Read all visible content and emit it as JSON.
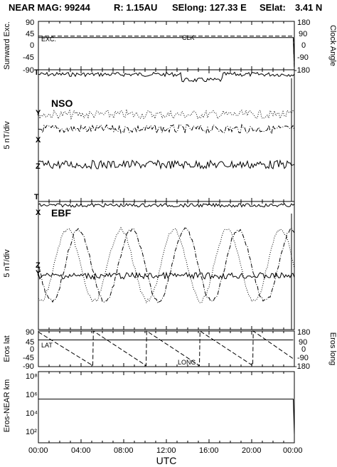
{
  "header": {
    "title_parts": [
      "NEAR MAG: 99244",
      "R: 1.15AU",
      "SElong:  127.33 E",
      "SElat:",
      "3.41 N"
    ]
  },
  "chart_data": [
    {
      "type": "line",
      "ylabel_left": "Sunward Exc.",
      "ylabel_right": "Clock Angle",
      "ylim_left": [
        -90,
        90
      ],
      "ylim_right": [
        -180,
        180
      ],
      "yticks_left": [
        "90",
        "45",
        "0",
        "-45",
        "-90"
      ],
      "yticks_right": [
        "180",
        "90",
        "0",
        "-90",
        "-180"
      ],
      "annotations": [
        "EXC.",
        "CLK"
      ],
      "series": [
        {
          "name": "EXC.",
          "style": "solid",
          "x": [
            0,
            23.9,
            24.0
          ],
          "y": [
            30,
            30,
            -88
          ]
        },
        {
          "name": "CLK",
          "style": "dashed",
          "x": [
            0,
            23.9,
            24.0
          ],
          "y": [
            35,
            35,
            -90
          ]
        }
      ]
    },
    {
      "type": "line",
      "label": "NSO",
      "ylabel": "5 nT/div",
      "annotations": [
        "T",
        "Y",
        "X",
        "Z",
        "T"
      ],
      "series": [
        {
          "name": "T",
          "style": "solid",
          "level": 0.035
        },
        {
          "name": "Y",
          "style": "dotted",
          "level": 0.34
        },
        {
          "name": "X",
          "style": "dashdot",
          "level": 0.45
        },
        {
          "name": "Z",
          "style": "solid",
          "level": 0.72
        }
      ]
    },
    {
      "type": "line",
      "label": "EBF",
      "ylabel": "5 nT/div",
      "annotations": [
        "X",
        "Z",
        "Y"
      ],
      "series": [
        {
          "name": "X",
          "style": "solid",
          "level": 0.03
        },
        {
          "name": "X",
          "style": "dashdot",
          "osc": true
        },
        {
          "name": "Y",
          "style": "dotted",
          "osc": true
        },
        {
          "name": "Z",
          "style": "solid",
          "level": 0.58
        }
      ]
    },
    {
      "type": "line",
      "ylabel_left": "Eros lat",
      "ylabel_right": "Eros long",
      "ylim_left": [
        -90,
        90
      ],
      "ylim_right": [
        -180,
        180
      ],
      "yticks_left": [
        "90",
        "45",
        "0",
        "-45",
        "-90"
      ],
      "yticks_right": [
        "180",
        "90",
        "0",
        "-90",
        "-180"
      ],
      "annotations": [
        "LAT",
        "LONG"
      ],
      "series": [
        {
          "name": "LAT",
          "style": "solid",
          "x": [
            0,
            23.9
          ],
          "y": [
            45,
            45
          ]
        },
        {
          "name": "LONG",
          "style": "dashed",
          "x": [
            0,
            5.1,
            5.15,
            10.1,
            10.15,
            15.1,
            15.15,
            20.1,
            20.15,
            23.9
          ],
          "y": [
            170,
            -170,
            180,
            -170,
            180,
            -170,
            180,
            -170,
            180,
            -100
          ]
        }
      ]
    },
    {
      "type": "line",
      "ylabel": "Eros-NEAR km",
      "yscale": "log",
      "yticks": [
        "10⁸",
        "10⁶",
        "10⁴",
        "10²"
      ],
      "series": [
        {
          "name": "Eros-NEAR",
          "style": "solid",
          "x": [
            0,
            23.9,
            24.0
          ],
          "y": [
            500000,
            500000,
            150
          ]
        }
      ]
    }
  ],
  "xaxis": {
    "label": "UTC",
    "ticks": [
      "00:00",
      "04:00",
      "08:00",
      "12:00",
      "16:00",
      "20:00",
      "00:00"
    ]
  }
}
